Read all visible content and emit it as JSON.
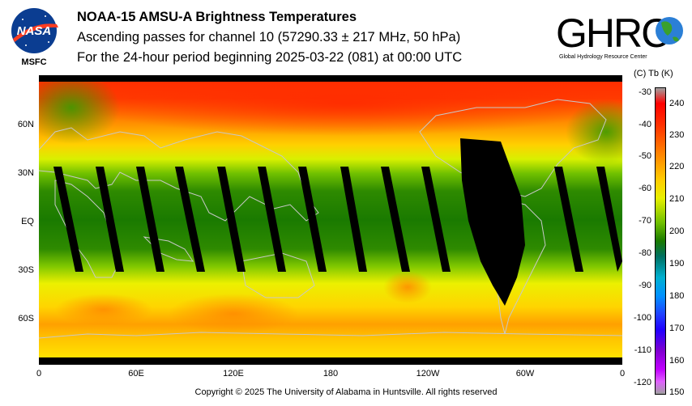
{
  "header": {
    "title": "NOAA-15 AMSU-A Brightness Temperatures",
    "subtitle": "Ascending passes for channel 10 (57290.33 ± 217 MHz, 50 hPa)",
    "period": "For the 24-hour period beginning 2025-03-22 (081) at 00:00 UTC"
  },
  "logos": {
    "nasa": "NASA",
    "msfc": "MSFC",
    "ghrc": "GHRC",
    "ghrc_tagline": "Global Hydrology Resource Center"
  },
  "map": {
    "lat_labels": [
      "60N",
      "30N",
      "EQ",
      "30S",
      "60S"
    ],
    "lon_labels": [
      "0",
      "60E",
      "120E",
      "180",
      "120W",
      "60W",
      "0"
    ],
    "colors": {
      "cold_pole": "#ff0000",
      "warm_mid": "#ffd000",
      "tropics": "#1a7a00",
      "missing_swath": "#000000",
      "coastline": "#c8c8c8"
    }
  },
  "colorbar": {
    "header": "(C)  Tb  (K)",
    "kelvin_ticks": [
      "240",
      "230",
      "220",
      "210",
      "200",
      "190",
      "180",
      "170",
      "160",
      "150"
    ],
    "celsius_ticks": [
      "-30",
      "-40",
      "-50",
      "-60",
      "-70",
      "-80",
      "-90",
      "-100",
      "-110",
      "-120"
    ]
  },
  "footer": {
    "copyright": "Copyright © 2025 The University of Alabama in Huntsville.  All rights reserved"
  }
}
